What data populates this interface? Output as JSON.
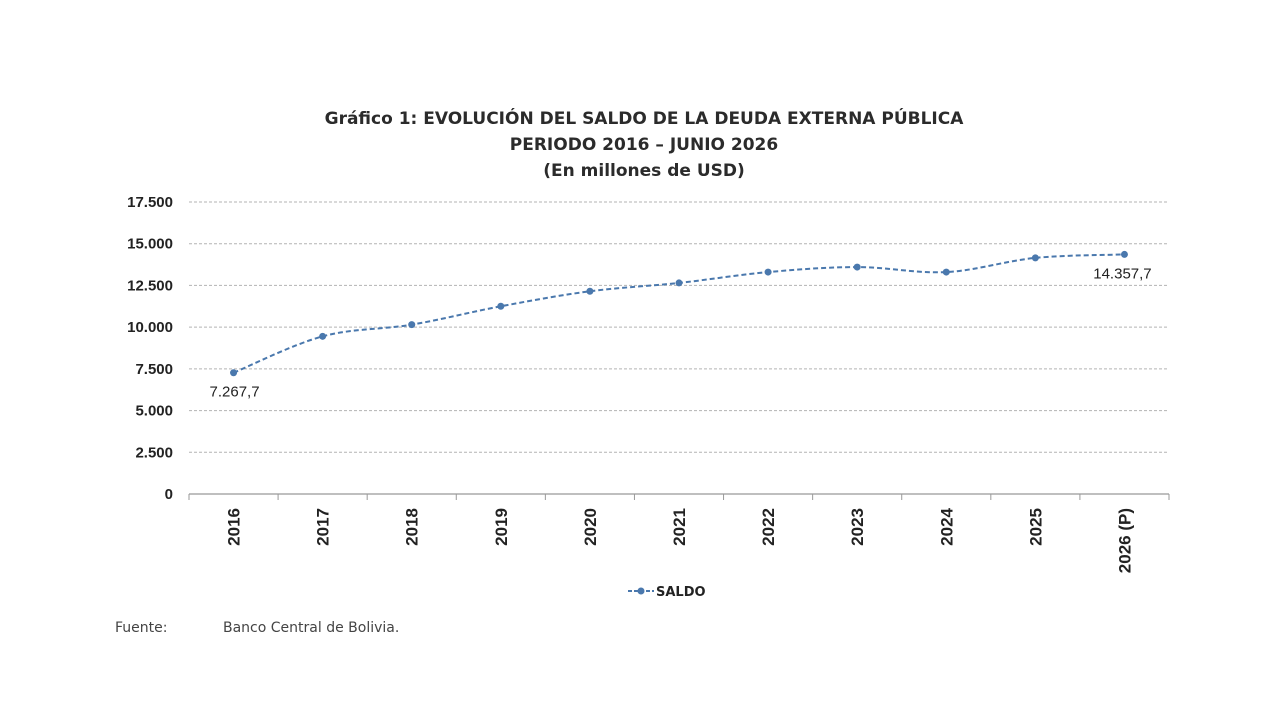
{
  "title_lines": [
    "Gráfico 1: EVOLUCIÓN DEL SALDO DE LA DEUDA EXTERNA PÚBLICA",
    "PERIODO 2016 –  JUNIO 2026",
    "(En millones de USD)"
  ],
  "source": {
    "label": "Fuente:",
    "text": "Banco Central de Bolivia."
  },
  "colors": {
    "series": "#4a78ad",
    "grid": "#b3b3b3",
    "axis": "#999999"
  },
  "chart_data": {
    "type": "line",
    "categories": [
      "2016",
      "2017",
      "2018",
      "2019",
      "2020",
      "2021",
      "2022",
      "2023",
      "2024",
      "2025",
      "2026 (P)"
    ],
    "series": [
      {
        "name": "SALDO",
        "values": [
          7267.7,
          9450,
          10150,
          11250,
          12150,
          12650,
          13300,
          13600,
          13300,
          14150,
          14357.7
        ],
        "line_style": "dashed",
        "marker": "circle"
      }
    ],
    "data_labels": [
      {
        "index": 0,
        "text": "7.267,7"
      },
      {
        "index": 10,
        "text": "14.357,7"
      }
    ],
    "yticks": [
      0,
      2500,
      5000,
      7500,
      10000,
      12500,
      15000,
      17500
    ],
    "ytick_labels": [
      "0",
      "2.500",
      "5.000",
      "7.500",
      "10.000",
      "12.500",
      "15.000",
      "17.500"
    ],
    "ylim": [
      0,
      17500
    ],
    "grid": true,
    "legend_position": "bottom-center"
  }
}
